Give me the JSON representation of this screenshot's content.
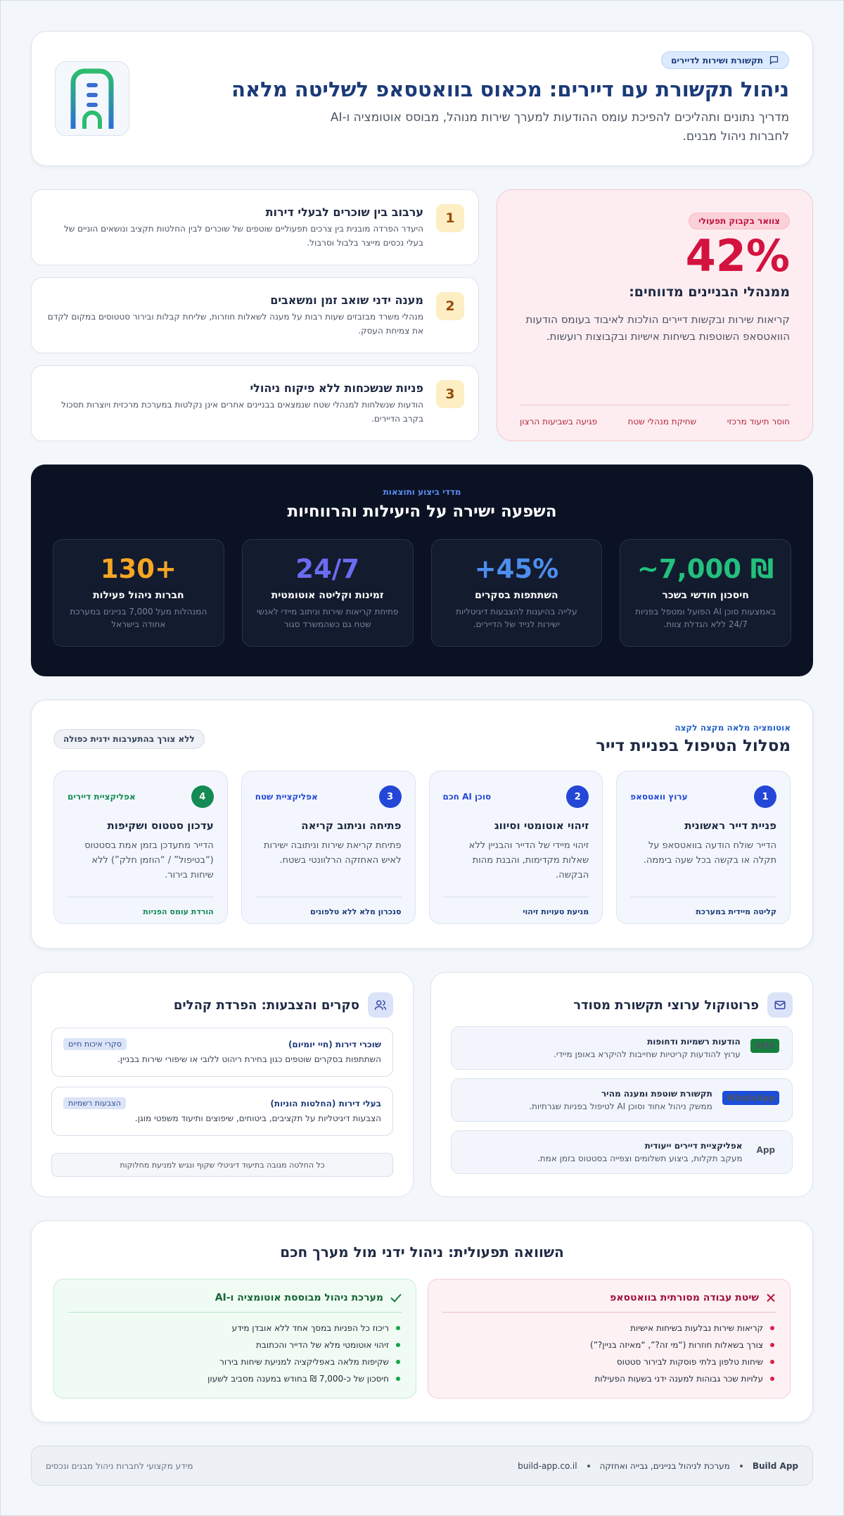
{
  "header": {
    "badge": "תקשורת ושירות לדיירים",
    "title": "ניהול תקשורת עם דיירים: מכאוס בוואטסאפ לשליטה מלאה",
    "subtitle": "מדריך נתונים ותהליכים להפיכת עומס ההודעות למערך שירות מנוהל, מבוסס אוטומציה ו-AI לחברות ניהול מבנים."
  },
  "problems": [
    {
      "num": "1",
      "title": "ערבוב בין שוכרים לבעלי דירות",
      "text": "היעדר הפרדה מובנית בין צרכים תפעוליים שוטפים של שוכרים לבין החלטות תקציב ונושאים הוניים של בעלי נכסים מייצר בלבול וסרבול."
    },
    {
      "num": "2",
      "title": "מענה ידני שואב זמן ומשאבים",
      "text": "מנהלי משרד מבזבזים שעות רבות על מענה לשאלות חוזרות, שליחת קבלות ובירור סטטוסים במקום לקדם את צמיחת העסק."
    },
    {
      "num": "3",
      "title": "פניות שנשכחות ללא פיקוח ניהולי",
      "text": "הודעות שנשלחות למנהלי שטח שנמצאים בבניינים אחרים אינן נקלטות במערכת מרכזית ויוצרות תסכול בקרב הדיירים."
    }
  ],
  "bottleneck": {
    "badge": "צוואר בקבוק תפעולי",
    "value": "42%",
    "label": "ממנהלי הבניינים מדווחים:",
    "text": "קריאות שירות ובקשות דיירים הולכות לאיבוד בעומס הודעות הוואטסאפ השוטפות בשיחות אישיות ובקבוצות רועשות.",
    "tags": [
      "חוסר תיעוד מרכזי",
      "שחיקת מנהלי שטח",
      "פגיעה בשביעות הרצון"
    ]
  },
  "impact": {
    "kicker": "מדדי ביצוע ותוצאות",
    "title": "השפעה ישירה על היעילות והרווחיות",
    "stats": [
      {
        "value": "~7,000 ₪",
        "label": "חיסכון חודשי בשכר",
        "text": "באמצעות סוכן AI הפועל ומטפל בפניות 24/7 ללא הגדלת צוות."
      },
      {
        "value": "+45%",
        "label": "השתתפות בסקרים",
        "text": "עלייה בהיענות להצבעות דיגיטליות ישירות לנייד של הדיירים."
      },
      {
        "value": "24/7",
        "label": "זמינות וקליטה אוטומטית",
        "text": "פתיחת קריאות שירות וניתוב מיידי לאנשי שטח גם כשהמשרד סגור"
      },
      {
        "value": "130+",
        "label": "חברות ניהול פעילות",
        "text": "המנהלות מעל 7,000 בניינים במערכת אחודה בישראל"
      }
    ]
  },
  "journey": {
    "kicker": "אוטומציה מלאה מקצה לקצה",
    "title": "מסלול הטיפול בפניית דייר",
    "pill": "ללא צורך בהתערבות ידנית כפולה",
    "steps": [
      {
        "num": "1",
        "tag": "ערוץ וואטסאפ",
        "title": "פניית דייר ראשונית",
        "text": "הדייר שולח הודעה בוואטסאפ על תקלה או בקשה בכל שעה ביממה.",
        "footer": "קליטה מיידית במערכת"
      },
      {
        "num": "2",
        "tag": "סוכן AI חכם",
        "title": "זיהוי אוטומטי וסיווג",
        "text": "זיהוי מיידי של הדייר והבניין ללא שאלות מקדימות, והבנת מהות הבקשה.",
        "footer": "מניעת טעויות זיהוי"
      },
      {
        "num": "3",
        "tag": "אפליקציית שטח",
        "title": "פתיחה וניתוב קריאה",
        "text": "פתיחת קריאת שירות וניתובה ישירות לאיש האחזקה הרלוונטי בשטח.",
        "footer": "סנכרון מלא ללא טלפונים"
      },
      {
        "num": "4",
        "tag": "אפליקציית דיירים",
        "title": "עדכון סטטוס ושקיפות",
        "text": "הדייר מתעדכן בזמן אמת בסטטוס (“בטיפול” / “הוזמן חלק”) ללא שיחות בירור.",
        "footer": "הורדת עומס הפניות"
      }
    ]
  },
  "protocol": {
    "title": "פרוטוקול ערוצי תקשורת מסודר",
    "items": [
      {
        "tag": "SMS",
        "title": "הודעות רשמיות ודחופות",
        "text": "ערוץ להודעות קריטיות שחייבות להיקרא באופן מיידי."
      },
      {
        "tag": "WhatsApp",
        "title": "תקשורת שוטפת ומענה מהיר",
        "text": "ממשק ניהול אחוד וסוכן AI לטיפול בפניות שגרתיות."
      },
      {
        "tag": "App",
        "title": "אפליקציית דיירים ייעודית",
        "text": "מעקב תקלות, ביצוע תשלומים וצפייה בסטטוס בזמן אמת."
      }
    ]
  },
  "surveys": {
    "title": "סקרים והצבעות: הפרדת קהלים",
    "items": [
      {
        "title": "שוכרי דירות (חיי יומיום)",
        "tag": "סקרי איכות חיים",
        "text": "השתתפות בסקרים שוטפים כגון בחירת ריהוט ללובי או שיפורי שירות בבניין."
      },
      {
        "title": "בעלי דירות (החלטות הוניות)",
        "tag": "הצבעות רשמיות",
        "text": "הצבעות דיגיטליות על תקציבים, ביטוחים, שיפוצים ותיעוד משפטי מוגן."
      }
    ],
    "note": "כל החלטה מגובה בתיעוד דיגיטלי שקוף ונגיש למניעת מחלוקות"
  },
  "comparison": {
    "title": "השוואה תפעולית: ניהול ידני מול מערך חכם",
    "old": {
      "title": "שיטת עבודה מסורתית בוואטסאפ",
      "items": [
        "קריאות שירות נבלעות בשיחות אישיות",
        "צורך בשאלות חוזרות (“מי זה?”, “מאיזה בניין?”)",
        "שיחות טלפון בלתי פוסקות לבירור סטטוס",
        "עלויות שכר גבוהות למענה ידני בשעות הפעילות"
      ]
    },
    "new": {
      "title": "מערכת ניהול מבוססת אוטומציה ו-AI",
      "items": [
        "ריכוז כל הפניות במסך אחד ללא אובדן מידע",
        "זיהוי אוטומטי מלא של הדייר והכתובת",
        "שקיפות מלאה באפליקציה למניעת שיחות בירור",
        "חיסכון של כ-7,000 ₪ בחודש במענה מסביב לשעון"
      ]
    }
  },
  "footer": {
    "brand": "Build App",
    "tagline": "מערכת לניהול בניינים, גבייה ואחזקה",
    "site": "build-app.co.il",
    "note": "מידע מקצועי לחברות ניהול מבנים ונכסים"
  }
}
